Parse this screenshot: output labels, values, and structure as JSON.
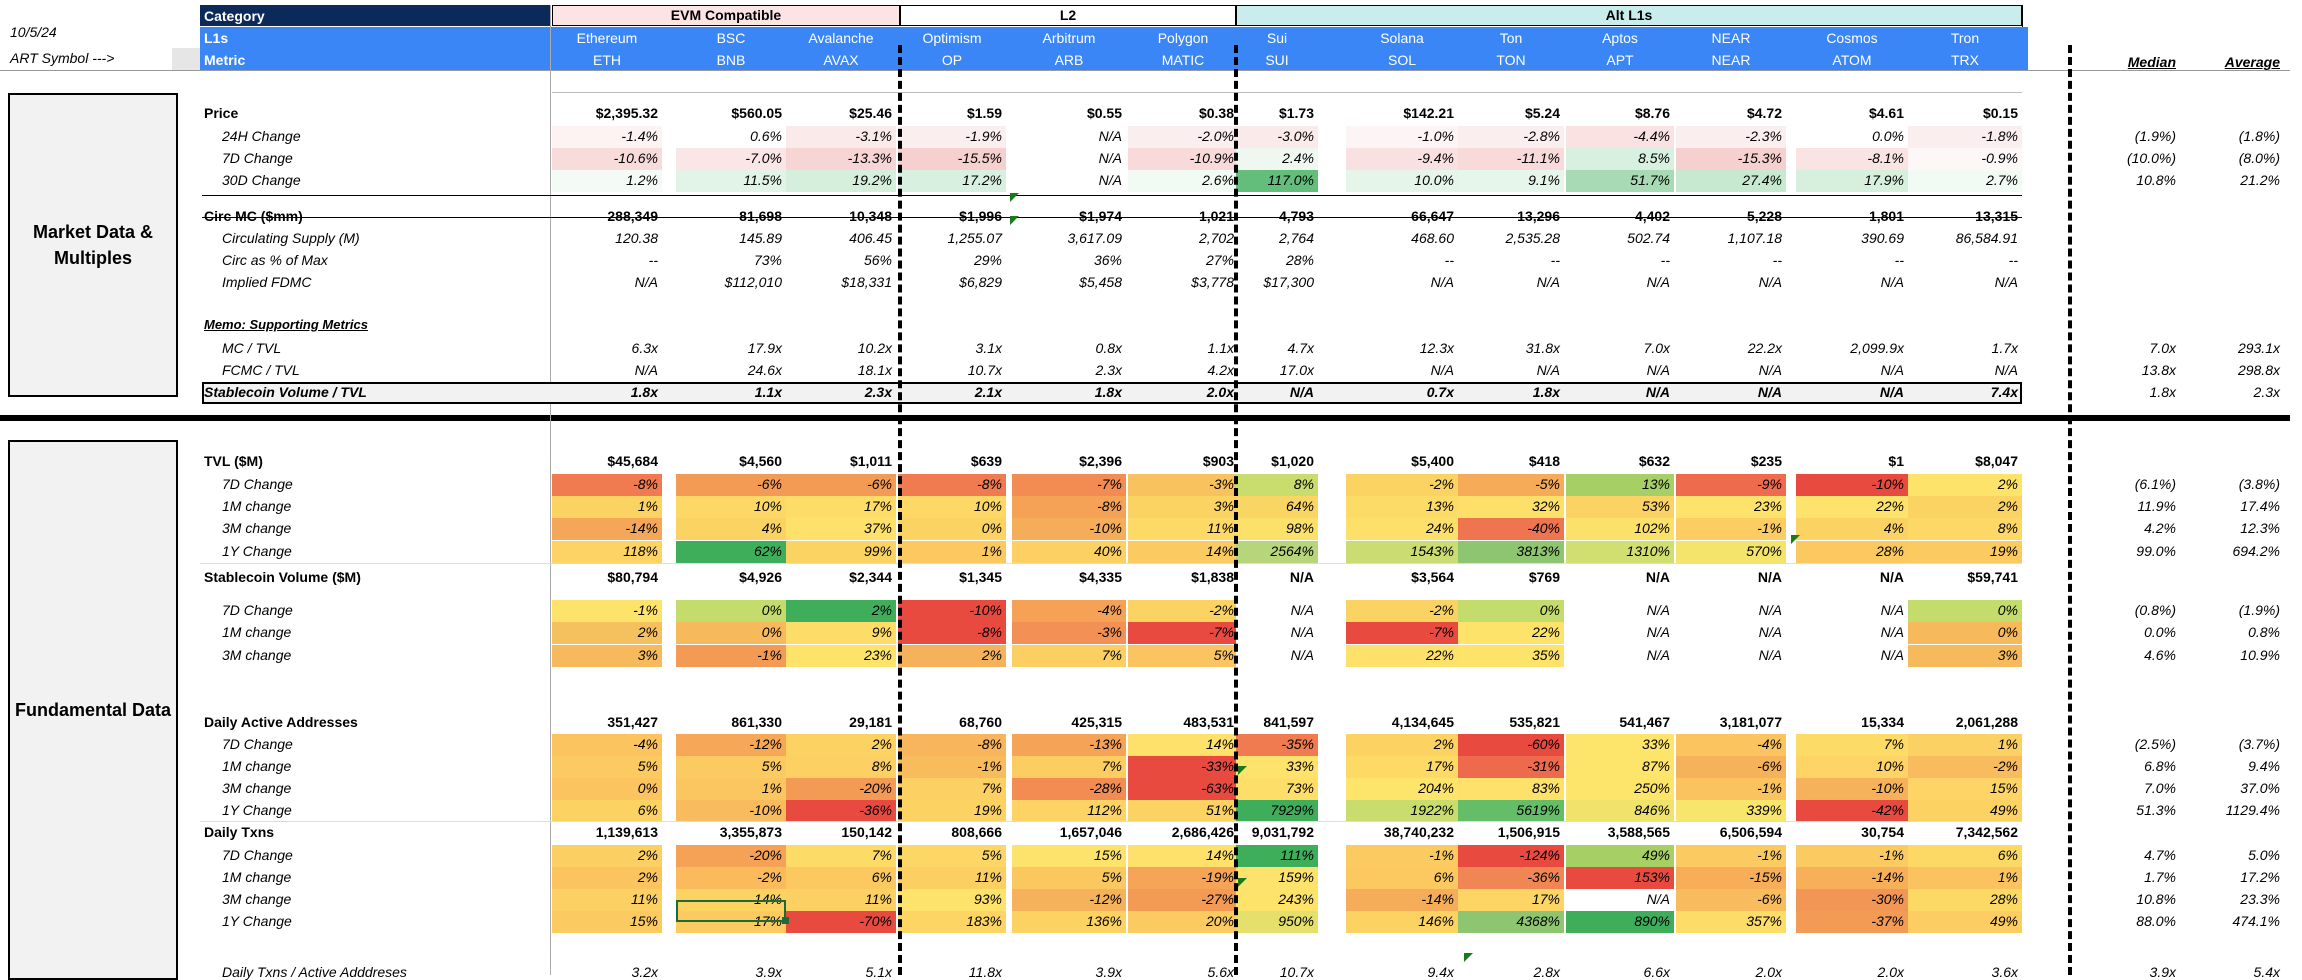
{
  "header": {
    "date": "10/5/24",
    "art_symbol": "ART Symbol --->",
    "category_label": "Category",
    "l1s_label": "L1s",
    "metric_label": "Metric",
    "groups": [
      {
        "name": "EVM Compatible",
        "color": "#fce4e4"
      },
      {
        "name": "L2",
        "color": "#ffffff"
      },
      {
        "name": "Alt L1s",
        "color": "#c9ecec"
      }
    ],
    "chains": [
      {
        "name": "Ethereum",
        "symbol": "ETH"
      },
      {
        "name": "BSC",
        "symbol": "BNB"
      },
      {
        "name": "Avalanche",
        "symbol": "AVAX"
      },
      {
        "name": "Optimism",
        "symbol": "OP"
      },
      {
        "name": "Arbitrum",
        "symbol": "ARB"
      },
      {
        "name": "Polygon",
        "symbol": "MATIC"
      },
      {
        "name": "Sui",
        "symbol": "SUI"
      },
      {
        "name": "Solana",
        "symbol": "SOL"
      },
      {
        "name": "Ton",
        "symbol": "TON"
      },
      {
        "name": "Aptos",
        "symbol": "APT"
      },
      {
        "name": "NEAR",
        "symbol": "NEAR"
      },
      {
        "name": "Cosmos",
        "symbol": "ATOM"
      },
      {
        "name": "Tron",
        "symbol": "TRX"
      }
    ],
    "median_label": "Median",
    "average_label": "Average"
  },
  "sections": [
    {
      "title": "Market Data &\nMultiples"
    },
    {
      "title": "Fundamental Data"
    }
  ],
  "rows": [
    {
      "label": "Price",
      "style": "bold",
      "values": [
        "$2,395.32",
        "$560.05",
        "$25.46",
        "$1.59",
        "$0.55",
        "$0.38",
        "$1.73",
        "$142.21",
        "$5.24",
        "$8.76",
        "$4.72",
        "$4.61",
        "$0.15"
      ],
      "median": "",
      "average": ""
    },
    {
      "label": "24H Change",
      "style": "italic",
      "values": [
        "-1.4%",
        "0.6%",
        "-3.1%",
        "-1.9%",
        "N/A",
        "-2.0%",
        "-3.0%",
        "-1.0%",
        "-2.8%",
        "-4.4%",
        "-2.3%",
        "0.0%",
        "-1.8%"
      ],
      "median": "(1.9%)",
      "average": "(1.8%)",
      "fills": [
        "#fdf3f3",
        "#ffffff",
        "#fbeaea",
        "#fbeeee",
        "#ffffff",
        "#fbeeee",
        "#fbeaea",
        "#fdf5f5",
        "#fbeeee",
        "#fae2e2",
        "#fbeeee",
        "#ffffff",
        "#fbeeee"
      ]
    },
    {
      "label": "7D Change",
      "style": "italic",
      "values": [
        "-10.6%",
        "-7.0%",
        "-13.3%",
        "-15.5%",
        "N/A",
        "-10.9%",
        "2.4%",
        "-9.4%",
        "-11.1%",
        "8.5%",
        "-15.3%",
        "-8.1%",
        "-0.9%"
      ],
      "median": "(10.0%)",
      "average": "(8.0%)",
      "fills": [
        "#f8dcdc",
        "#fae6e6",
        "#f7d5d5",
        "#f6cfcf",
        "#ffffff",
        "#f8dada",
        "#eef8f1",
        "#f9e1e1",
        "#f8dada",
        "#d8f0df",
        "#f6cfcf",
        "#f9e3e3",
        "#fdf7f7"
      ]
    },
    {
      "label": "30D Change",
      "style": "italic",
      "values": [
        "1.2%",
        "11.5%",
        "19.2%",
        "17.2%",
        "N/A",
        "2.6%",
        "117.0%",
        "10.0%",
        "9.1%",
        "51.7%",
        "27.4%",
        "17.9%",
        "2.7%"
      ],
      "median": "10.8%",
      "average": "21.2%",
      "fills": [
        "#f4fbf6",
        "#e2f4e7",
        "#d5efdc",
        "#d8f0df",
        "#ffffff",
        "#f1faf3",
        "#63be7b",
        "#e5f5ea",
        "#e7f6eb",
        "#a8dbb5",
        "#c6e9cf",
        "#d7efdd",
        "#f1faf3"
      ]
    },
    {
      "label": "Circ MC ($mm)",
      "style": "bold",
      "values": [
        "288,349",
        "81,698",
        "10,348",
        "$1,996",
        "$1,974",
        "1,021",
        "4,793",
        "66,647",
        "13,296",
        "4,402",
        "5,228",
        "1,801",
        "13,315"
      ],
      "median": "",
      "average": ""
    },
    {
      "label": "Circulating Supply (M)",
      "style": "italic",
      "values": [
        "120.38",
        "145.89",
        "406.45",
        "1,255.07",
        "3,617.09",
        "2,702",
        "2,764",
        "468.60",
        "2,535.28",
        "502.74",
        "1,107.18",
        "390.69",
        "86,584.91"
      ],
      "median": "",
      "average": ""
    },
    {
      "label": "Circ as % of Max",
      "style": "italic",
      "values": [
        "--",
        "73%",
        "56%",
        "29%",
        "36%",
        "27%",
        "28%",
        "--",
        "--",
        "--",
        "--",
        "--",
        "--"
      ],
      "median": "",
      "average": ""
    },
    {
      "label": "Implied FDMC",
      "style": "italic",
      "values": [
        "N/A",
        "$112,010",
        "$18,331",
        "$6,829",
        "$5,458",
        "$3,778",
        "$17,300",
        "N/A",
        "N/A",
        "N/A",
        "N/A",
        "N/A",
        "N/A"
      ],
      "median": "",
      "average": ""
    },
    {
      "label": "Memo: Supporting Metrics",
      "style": "memo",
      "values": [],
      "median": "",
      "average": ""
    },
    {
      "label": "MC / TVL",
      "style": "italic",
      "values": [
        "6.3x",
        "17.9x",
        "10.2x",
        "3.1x",
        "0.8x",
        "1.1x",
        "4.7x",
        "12.3x",
        "31.8x",
        "7.0x",
        "22.2x",
        "2,099.9x",
        "1.7x"
      ],
      "median": "7.0x",
      "average": "293.1x"
    },
    {
      "label": "FCMC / TVL",
      "style": "italic",
      "values": [
        "N/A",
        "24.6x",
        "18.1x",
        "10.7x",
        "2.3x",
        "4.2x",
        "17.0x",
        "N/A",
        "N/A",
        "N/A",
        "N/A",
        "N/A",
        "N/A"
      ],
      "median": "13.8x",
      "average": "298.8x"
    },
    {
      "label": "Stablecoin Volume / TVL",
      "style": "boxed",
      "values": [
        "1.8x",
        "1.1x",
        "2.3x",
        "2.1x",
        "1.8x",
        "2.0x",
        "N/A",
        "0.7x",
        "1.8x",
        "N/A",
        "N/A",
        "N/A",
        "7.4x"
      ],
      "median": "1.8x",
      "average": "2.3x"
    },
    {
      "label": "TVL ($M)",
      "style": "bold",
      "values": [
        "$45,684",
        "$4,560",
        "$1,011",
        "$639",
        "$2,396",
        "$903",
        "$1,020",
        "$5,400",
        "$418",
        "$632",
        "$235",
        "$1",
        "$8,047"
      ],
      "median": "",
      "average": ""
    },
    {
      "label": "7D Change",
      "style": "italic",
      "values": [
        "-8%",
        "-6%",
        "-6%",
        "-8%",
        "-7%",
        "-3%",
        "8%",
        "-2%",
        "-5%",
        "13%",
        "-9%",
        "-10%",
        "2%"
      ],
      "median": "(6.1%)",
      "average": "(3.8%)",
      "fills": [
        "#f07b50",
        "#f39a55",
        "#f39a55",
        "#f07b50",
        "#f28c52",
        "#f8c25e",
        "#c9dc6e",
        "#fbd363",
        "#f5ab58",
        "#a6cf66",
        "#ee6c4d",
        "#e84a3f",
        "#fde36a"
      ]
    },
    {
      "label": "1M change",
      "style": "italic",
      "values": [
        "1%",
        "10%",
        "17%",
        "10%",
        "-8%",
        "3%",
        "64%",
        "13%",
        "32%",
        "53%",
        "23%",
        "22%",
        "2%"
      ],
      "median": "11.9%",
      "average": "17.4%",
      "fills": [
        "#fbd363",
        "#fdd866",
        "#fddc68",
        "#fdd866",
        "#f5a257",
        "#fbd363",
        "#f9d564",
        "#fddb67",
        "#fde06a",
        "#fbd364",
        "#fde26b",
        "#fde26b",
        "#fbd363"
      ]
    },
    {
      "label": "3M change",
      "style": "italic",
      "values": [
        "-14%",
        "4%",
        "37%",
        "0%",
        "-10%",
        "11%",
        "98%",
        "24%",
        "-40%",
        "102%",
        "-1%",
        "4%",
        "8%"
      ],
      "median": "4.2%",
      "average": "12.3%",
      "fills": [
        "#f4a758",
        "#fbd363",
        "#fde16a",
        "#fbd363",
        "#f6ad59",
        "#fdd966",
        "#fbe06a",
        "#fde06a",
        "#ef7550",
        "#fbe06a",
        "#fbcd62",
        "#fbd363",
        "#fdd866"
      ]
    },
    {
      "label": "1Y Change",
      "style": "italic",
      "values": [
        "118%",
        "62%",
        "99%",
        "1%",
        "40%",
        "14%",
        "2564%",
        "1543%",
        "3813%",
        "1310%",
        "570%",
        "28%",
        "19%"
      ],
      "median": "99.0%",
      "average": "694.2%",
      "fills": [
        "#fcd364",
        "#3fae5b",
        "#fbd363",
        "#fbc95f",
        "#fcd062",
        "#fbca60",
        "#b7d57a",
        "#cbdc73",
        "#8ec570",
        "#d0df70",
        "#f4e46c",
        "#fbc95f",
        "#fbca60"
      ]
    },
    {
      "label": "Stablecoin Volume ($M)",
      "style": "bold",
      "values": [
        "$80,794",
        "$4,926",
        "$2,344",
        "$1,345",
        "$4,335",
        "$1,838",
        "N/A",
        "$3,564",
        "$769",
        "N/A",
        "N/A",
        "N/A",
        "$59,741"
      ],
      "median": "",
      "average": ""
    },
    {
      "label": "7D Change",
      "style": "italic",
      "values": [
        "-1%",
        "0%",
        "2%",
        "-10%",
        "-4%",
        "-2%",
        "N/A",
        "-2%",
        "0%",
        "N/A",
        "N/A",
        "N/A",
        "0%"
      ],
      "median": "(0.8%)",
      "average": "(1.9%)",
      "fills": [
        "#fde36a",
        "#c4dc6c",
        "#3fae5b",
        "#e84a3f",
        "#f5a257",
        "#fbd363",
        "#ffffff",
        "#fbd363",
        "#c4dc6c",
        "#ffffff",
        "#ffffff",
        "#ffffff",
        "#c4dc6c"
      ]
    },
    {
      "label": "1M change",
      "style": "italic",
      "values": [
        "2%",
        "0%",
        "9%",
        "-8%",
        "-3%",
        "-7%",
        "N/A",
        "-7%",
        "22%",
        "N/A",
        "N/A",
        "N/A",
        "0%"
      ],
      "median": "0.0%",
      "average": "0.8%",
      "fills": [
        "#f5c15e",
        "#f6b95c",
        "#fddc68",
        "#e84a3f",
        "#f29055",
        "#e84a3f",
        "#ffffff",
        "#e84a3f",
        "#fde36a",
        "#ffffff",
        "#ffffff",
        "#ffffff",
        "#f6b95c"
      ]
    },
    {
      "label": "3M change",
      "style": "italic",
      "values": [
        "3%",
        "-1%",
        "23%",
        "2%",
        "7%",
        "5%",
        "N/A",
        "22%",
        "35%",
        "N/A",
        "N/A",
        "N/A",
        "3%"
      ],
      "median": "4.6%",
      "average": "10.9%",
      "fills": [
        "#f6b95c",
        "#f39a55",
        "#fde36a",
        "#f6b25a",
        "#fbcf62",
        "#fbc460",
        "#ffffff",
        "#fde16a",
        "#fde36a",
        "#ffffff",
        "#ffffff",
        "#ffffff",
        "#f6b95c"
      ]
    },
    {
      "label": "Daily Active Addresses",
      "style": "bold",
      "values": [
        "351,427",
        "861,330",
        "29,181",
        "68,760",
        "425,315",
        "483,531",
        "841,597",
        "4,134,645",
        "535,821",
        "541,467",
        "3,181,077",
        "15,334",
        "2,061,288"
      ],
      "median": "",
      "average": ""
    },
    {
      "label": "7D Change",
      "style": "italic",
      "values": [
        "-4%",
        "-12%",
        "2%",
        "-8%",
        "-13%",
        "14%",
        "-35%",
        "2%",
        "-60%",
        "33%",
        "-4%",
        "7%",
        "1%"
      ],
      "median": "(2.5%)",
      "average": "(3.7%)",
      "fills": [
        "#fbc45f",
        "#f6a858",
        "#fcd263",
        "#f8b55b",
        "#f5a357",
        "#fde16a",
        "#f07b50",
        "#fcd263",
        "#e84a3f",
        "#fde46b",
        "#fbc45f",
        "#fddb67",
        "#fcd163"
      ]
    },
    {
      "label": "1M change",
      "style": "italic",
      "values": [
        "5%",
        "5%",
        "8%",
        "-1%",
        "7%",
        "-33%",
        "33%",
        "17%",
        "-31%",
        "87%",
        "-6%",
        "10%",
        "-2%"
      ],
      "median": "6.8%",
      "average": "9.4%",
      "fills": [
        "#fbca60",
        "#fbca60",
        "#fcd062",
        "#f8bc5d",
        "#fcce62",
        "#e84a3f",
        "#fde26b",
        "#fdd966",
        "#ed6a4c",
        "#fde46b",
        "#f6b25a",
        "#fdd465",
        "#f8bb5d"
      ]
    },
    {
      "label": "3M change",
      "style": "italic",
      "values": [
        "0%",
        "1%",
        "-20%",
        "7%",
        "-28%",
        "-63%",
        "73%",
        "204%",
        "83%",
        "250%",
        "-1%",
        "-10%",
        "15%"
      ],
      "median": "7.0%",
      "average": "37.0%",
      "fills": [
        "#fbc45f",
        "#fbc560",
        "#f39a55",
        "#fcd062",
        "#f28c52",
        "#e84a3f",
        "#fdde68",
        "#fde46b",
        "#fde16a",
        "#fde46b",
        "#fbc35f",
        "#f6b25a",
        "#fdd465"
      ]
    },
    {
      "label": "1Y Change",
      "style": "italic",
      "values": [
        "6%",
        "-10%",
        "-36%",
        "19%",
        "112%",
        "51%",
        "7929%",
        "1922%",
        "5619%",
        "846%",
        "339%",
        "-42%",
        "49%"
      ],
      "median": "51.3%",
      "average": "1129.4%",
      "fills": [
        "#fcd263",
        "#f8bb5d",
        "#e84a3f",
        "#fcd263",
        "#fcd364",
        "#fcd263",
        "#3fae5b",
        "#c9dc6e",
        "#63be67",
        "#efe36b",
        "#f8e56b",
        "#e84a3f",
        "#fcd263"
      ]
    },
    {
      "label": "Daily Txns",
      "style": "bold",
      "values": [
        "1,139,613",
        "3,355,873",
        "150,142",
        "808,666",
        "1,657,046",
        "2,686,426",
        "9,031,792",
        "38,740,232",
        "1,506,915",
        "3,588,565",
        "6,506,594",
        "30,754",
        "7,342,562"
      ],
      "median": "",
      "average": ""
    },
    {
      "label": "7D Change",
      "style": "italic",
      "values": [
        "2%",
        "-20%",
        "7%",
        "5%",
        "15%",
        "14%",
        "111%",
        "-1%",
        "-124%",
        "49%",
        "-1%",
        "-1%",
        "6%"
      ],
      "median": "4.7%",
      "average": "5.0%",
      "fills": [
        "#fbcf62",
        "#f5a257",
        "#fddb67",
        "#fcd765",
        "#fde26b",
        "#fde16a",
        "#3fae5b",
        "#fbcb61",
        "#e84a3f",
        "#a6cf66",
        "#fbcb61",
        "#fbcb61",
        "#fcd965"
      ]
    },
    {
      "label": "1M change",
      "style": "italic",
      "values": [
        "2%",
        "-2%",
        "6%",
        "11%",
        "5%",
        "-19%",
        "159%",
        "6%",
        "-36%",
        "153%",
        "-15%",
        "-14%",
        "1%"
      ],
      "median": "1.7%",
      "average": "17.2%",
      "fills": [
        "#fbc45f",
        "#fbbb5d",
        "#fbc960",
        "#fbcf62",
        "#fbc85f",
        "#f6a457",
        "#fde26b",
        "#fbc960",
        "#f08653",
        "#e84a3f",
        "#f8ad59",
        "#f8af59",
        "#fbc35f"
      ]
    },
    {
      "label": "3M change",
      "style": "italic",
      "values": [
        "11%",
        "14%",
        "11%",
        "93%",
        "-12%",
        "-27%",
        "243%",
        "-14%",
        "17%",
        "N/A",
        "-6%",
        "-30%",
        "28%"
      ],
      "median": "10.8%",
      "average": "23.3%",
      "fills": [
        "#fcd062",
        "#fcd263",
        "#fcd062",
        "#fde26b",
        "#f6b25a",
        "#f39a55",
        "#fde36a",
        "#f5ad59",
        "#fcd564",
        "#ffffff",
        "#f8bb5d",
        "#f29655",
        "#fcd965"
      ]
    },
    {
      "label": "1Y Change",
      "style": "italic",
      "values": [
        "15%",
        "17%",
        "-70%",
        "183%",
        "136%",
        "20%",
        "950%",
        "146%",
        "4368%",
        "890%",
        "357%",
        "-37%",
        "49%"
      ],
      "median": "88.0%",
      "average": "474.1%",
      "fills": [
        "#fbca60",
        "#fbcb61",
        "#e84a3f",
        "#fcd564",
        "#fcd263",
        "#fbcb61",
        "#e5e06b",
        "#fcd263",
        "#8ec570",
        "#3fae5b",
        "#fddc68",
        "#f39a55",
        "#fbcd62"
      ]
    },
    {
      "label": "Daily Txns / Active Adddreses",
      "style": "italic",
      "values": [
        "3.2x",
        "3.9x",
        "5.1x",
        "11.8x",
        "3.9x",
        "5.6x",
        "10.7x",
        "9.4x",
        "2.8x",
        "6.6x",
        "2.0x",
        "2.0x",
        "3.6x"
      ],
      "median": "3.9x",
      "average": "5.4x"
    }
  ]
}
